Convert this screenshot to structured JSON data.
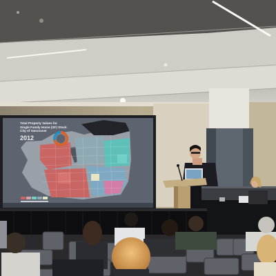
{
  "slide": {
    "title_lines": [
      "Total Property Values for",
      "Single Family Home (SF) Stock",
      "City of Vancouver"
    ],
    "year": "2012"
  },
  "colors": {
    "ceiling": "#d9d9d4",
    "back_wall": "#c9bfa6",
    "slide_background": "#5d6470",
    "slide_landmass": "#9aa0a8",
    "high_value_blocks": "#c96563",
    "mid_value_blocks": "#5fbfb9",
    "donut_accent": "#d9632a"
  }
}
